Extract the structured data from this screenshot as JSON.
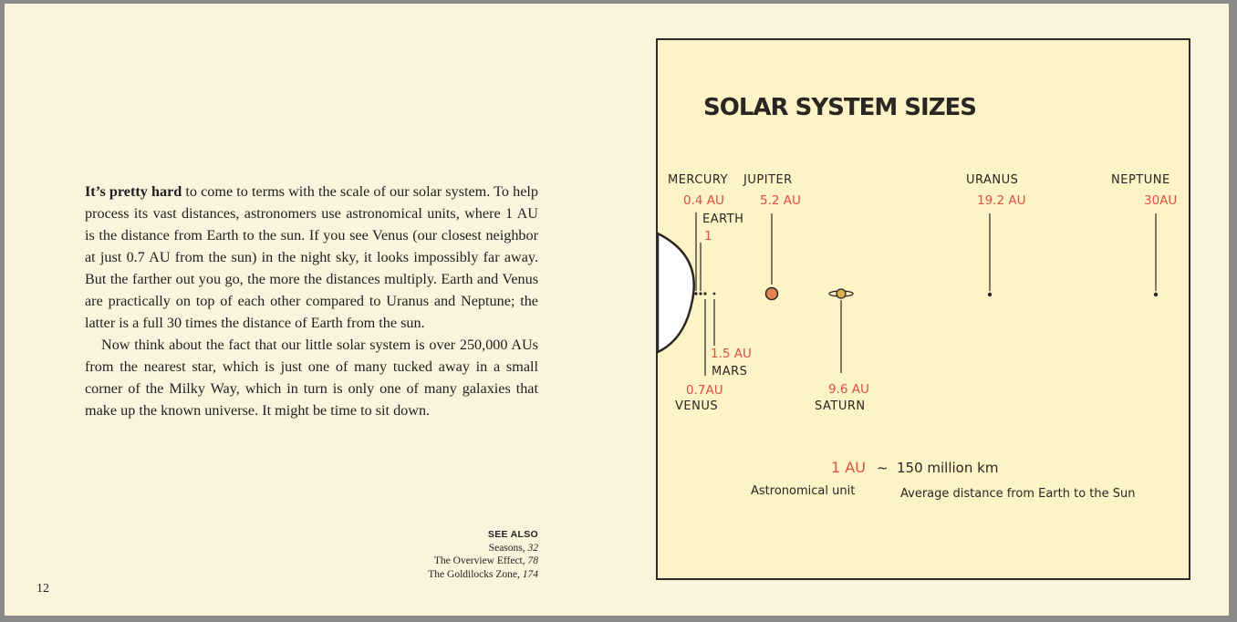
{
  "text": {
    "lead_bold": "It’s pretty hard",
    "para1_rest": " to come to terms with the scale of our solar system. To help process its vast distances, astronomers use astronomical units, where 1 AU is the distance from Earth to the sun. If you see Venus (our closest neighbor at just 0.7 AU from the sun) in the night sky, it looks impossibly far away. But the farther out you go, the more the distances multiply. Earth and Venus are practically on top of each other compared to Uranus and Neptune; the latter is a full 30 times the distance of Earth from the sun.",
    "para2": "Now think about the fact that our little solar system is over 250,000 AUs from the nearest star, which is just one of many tucked away in a small corner of the Milky Way, which in turn is only one of many galaxies that make up the known universe. It might be time to sit down."
  },
  "see_also": {
    "heading": "SEE ALSO",
    "items": [
      {
        "title": "Seasons,",
        "page": "32"
      },
      {
        "title": "The Overview Effect,",
        "page": "78"
      },
      {
        "title": "The Goldilocks Zone,",
        "page": "174"
      }
    ]
  },
  "page_number": "12",
  "illustration": {
    "title": "SOLAR SYSTEM SIZES",
    "planets": [
      {
        "name": "MERCURY",
        "distance": "0.4 AU"
      },
      {
        "name": "VENUS",
        "distance": "0.7AU"
      },
      {
        "name": "EARTH",
        "distance": "1"
      },
      {
        "name": "MARS",
        "distance": "1.5 AU"
      },
      {
        "name": "JUPITER",
        "distance": "5.2 AU"
      },
      {
        "name": "SATURN",
        "distance": "9.6 AU"
      },
      {
        "name": "URANUS",
        "distance": "19.2 AU"
      },
      {
        "name": "NEPTUNE",
        "distance": "30AU"
      }
    ],
    "legend": {
      "au": "1 AU",
      "approx": "~",
      "km": "150 million km",
      "au_name": "Astronomical unit",
      "definition": "Average distance from Earth to the Sun"
    },
    "colors": {
      "ink": "#2a2622",
      "red": "#e0513f",
      "jupiter": "#e3844f",
      "saturn": "#d7b24c",
      "paper": "#fdf3c6"
    }
  }
}
